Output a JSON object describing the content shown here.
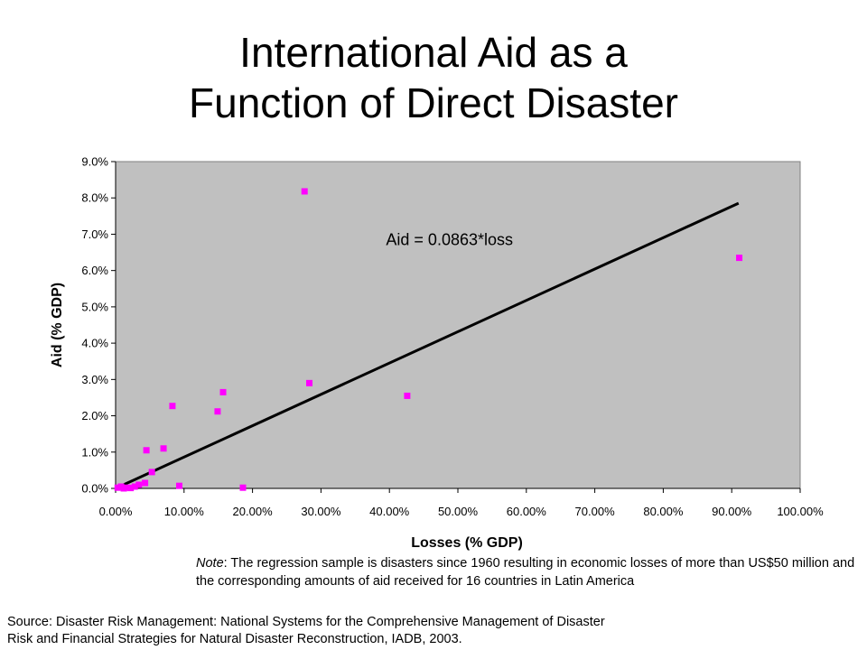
{
  "title_lines": [
    "International Aid as a",
    "Function of Direct Disaster"
  ],
  "note": {
    "lead": "Note",
    "text": ": The regression sample is disasters since 1960 resulting in economic losses of more than US$50 million and the corresponding amounts of aid received for 16 countries in Latin America"
  },
  "source_lines": [
    "Source: Disaster Risk Management: National Systems for the Comprehensive Management of Disaster",
    "Risk and Financial Strategies for Natural Disaster Reconstruction, IADB, 2003."
  ],
  "colors": {
    "plot_bg": "#c0c0c0",
    "point": "#ff00ff",
    "line": "#000000"
  },
  "chart_data": {
    "type": "scatter",
    "xlabel": "Losses (% GDP)",
    "ylabel": "Aid (% GDP)",
    "xlim": [
      0,
      100
    ],
    "ylim": [
      0,
      9
    ],
    "x_ticks": [
      "0.00%",
      "10.00%",
      "20.00%",
      "30.00%",
      "40.00%",
      "50.00%",
      "60.00%",
      "70.00%",
      "80.00%",
      "90.00%",
      "100.00%"
    ],
    "y_ticks": [
      "0.0%",
      "1.0%",
      "2.0%",
      "3.0%",
      "4.0%",
      "5.0%",
      "6.0%",
      "7.0%",
      "8.0%",
      "9.0%"
    ],
    "grid": false,
    "points": [
      {
        "x": 0.3,
        "y": 0.02
      },
      {
        "x": 0.8,
        "y": 0.05
      },
      {
        "x": 1.2,
        "y": 0.0
      },
      {
        "x": 1.7,
        "y": 0.02
      },
      {
        "x": 2.2,
        "y": 0.01
      },
      {
        "x": 2.8,
        "y": 0.05
      },
      {
        "x": 3.4,
        "y": 0.1
      },
      {
        "x": 4.3,
        "y": 0.15
      },
      {
        "x": 4.5,
        "y": 1.05
      },
      {
        "x": 5.3,
        "y": 0.45
      },
      {
        "x": 7.0,
        "y": 1.1
      },
      {
        "x": 8.3,
        "y": 2.27
      },
      {
        "x": 9.3,
        "y": 0.07
      },
      {
        "x": 14.9,
        "y": 2.12
      },
      {
        "x": 15.7,
        "y": 2.65
      },
      {
        "x": 18.6,
        "y": 0.02
      },
      {
        "x": 27.6,
        "y": 8.18
      },
      {
        "x": 28.3,
        "y": 2.9
      },
      {
        "x": 42.6,
        "y": 2.55
      },
      {
        "x": 91.1,
        "y": 6.35
      }
    ],
    "trendline": {
      "slope": 0.0863,
      "intercept": 0,
      "x_range": [
        0,
        91
      ],
      "label": "Aid = 0.0863*loss"
    }
  }
}
